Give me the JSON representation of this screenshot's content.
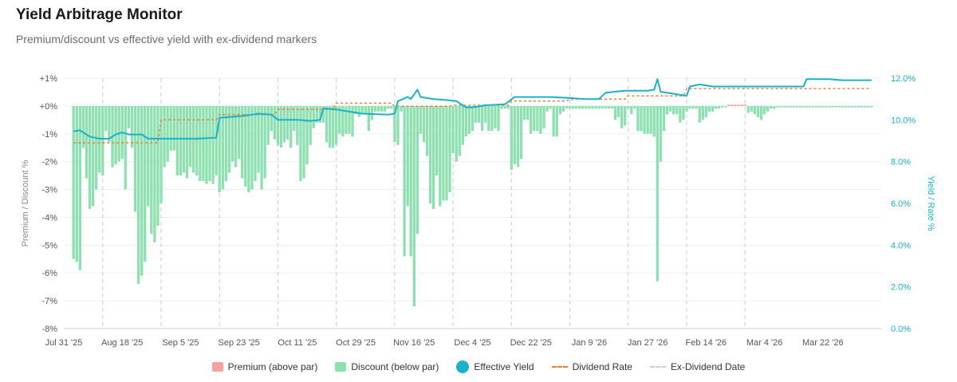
{
  "header": {
    "title": "Yield Arbitrage Monitor",
    "subtitle": "Premium/discount vs effective yield with ex-dividend markers"
  },
  "colors": {
    "premium": "#f4a3a3",
    "discount": "#8de0b0",
    "yield": "#17b3c9",
    "dividend": "#e8803a",
    "exdiv": "#cccccc"
  },
  "legend": {
    "premium": "Premium (above par)",
    "discount": "Discount (below par)",
    "yield": "Effective Yield",
    "dividend": "Dividend Rate",
    "exdiv": "Ex-Dividend Date"
  },
  "chart_data": {
    "type": "bar",
    "title": "Yield Arbitrage Monitor",
    "subtitle": "Premium/discount vs effective yield with ex-dividend markers",
    "ylabel": "Premium / Discount %",
    "y2label": "Yield / Rate %",
    "ylim": [
      -8,
      1
    ],
    "y2lim": [
      0,
      12
    ],
    "yticks": [
      {
        "v": 1,
        "label": "+1%"
      },
      {
        "v": 0,
        "label": "+0%"
      },
      {
        "v": -1,
        "label": "-1%"
      },
      {
        "v": -2,
        "label": "-2%"
      },
      {
        "v": -3,
        "label": "-3%"
      },
      {
        "v": -4,
        "label": "-4%"
      },
      {
        "v": -5,
        "label": "-5%"
      },
      {
        "v": -6,
        "label": "-6%"
      },
      {
        "v": -7,
        "label": "-7%"
      },
      {
        "v": -8,
        "label": "-8%"
      }
    ],
    "y2ticks": [
      {
        "v": 12,
        "label": "12.0%"
      },
      {
        "v": 10,
        "label": "10.0%"
      },
      {
        "v": 8,
        "label": "8.0%"
      },
      {
        "v": 6,
        "label": "6.0%"
      },
      {
        "v": 4,
        "label": "4.0%"
      },
      {
        "v": 2,
        "label": "2.0%"
      },
      {
        "v": 0,
        "label": "0.0%"
      }
    ],
    "xticks": [
      {
        "day": 0,
        "label": "Jul 31 '25"
      },
      {
        "day": 18,
        "label": "Aug 18 '25"
      },
      {
        "day": 36,
        "label": "Sep 5 '25"
      },
      {
        "day": 54,
        "label": "Sep 23 '25"
      },
      {
        "day": 72,
        "label": "Oct 11 '25"
      },
      {
        "day": 90,
        "label": "Oct 29 '25"
      },
      {
        "day": 108,
        "label": "Nov 16 '25"
      },
      {
        "day": 126,
        "label": "Dec 4 '25"
      },
      {
        "day": 144,
        "label": "Dec 22 '25"
      },
      {
        "day": 162,
        "label": "Jan 9 '26"
      },
      {
        "day": 180,
        "label": "Jan 27 '26"
      },
      {
        "day": 198,
        "label": "Feb 14 '26"
      },
      {
        "day": 216,
        "label": "Mar 4 '26"
      },
      {
        "day": 234,
        "label": "Mar 22 '26"
      }
    ],
    "x_range_days": [
      0,
      252
    ],
    "ex_dividend_days": [
      12,
      30,
      48,
      66,
      84,
      102,
      120,
      138,
      156,
      174,
      192,
      210
    ],
    "dividend_rate": [
      {
        "day": 3,
        "v": 8.9
      },
      {
        "day": 29,
        "v": 8.9
      },
      {
        "day": 30,
        "v": 10.0
      },
      {
        "day": 47,
        "v": 10.0
      },
      {
        "day": 48,
        "v": 10.25
      },
      {
        "day": 65,
        "v": 10.25
      },
      {
        "day": 66,
        "v": 10.5
      },
      {
        "day": 83,
        "v": 10.5
      },
      {
        "day": 84,
        "v": 10.8
      },
      {
        "day": 101,
        "v": 10.8
      },
      {
        "day": 102,
        "v": 10.65
      },
      {
        "day": 119,
        "v": 10.65
      },
      {
        "day": 120,
        "v": 10.7
      },
      {
        "day": 137,
        "v": 10.7
      },
      {
        "day": 138,
        "v": 10.9
      },
      {
        "day": 155,
        "v": 10.9
      },
      {
        "day": 156,
        "v": 11.0
      },
      {
        "day": 173,
        "v": 11.0
      },
      {
        "day": 174,
        "v": 11.15
      },
      {
        "day": 191,
        "v": 11.15
      },
      {
        "day": 192,
        "v": 11.5
      },
      {
        "day": 249,
        "v": 11.5
      }
    ],
    "effective_yield": [
      {
        "day": 3,
        "v": 9.45
      },
      {
        "day": 5,
        "v": 9.5
      },
      {
        "day": 8,
        "v": 9.2
      },
      {
        "day": 11,
        "v": 9.1
      },
      {
        "day": 14,
        "v": 9.1
      },
      {
        "day": 16,
        "v": 9.3
      },
      {
        "day": 18,
        "v": 9.4
      },
      {
        "day": 20,
        "v": 9.3
      },
      {
        "day": 24,
        "v": 9.3
      },
      {
        "day": 26,
        "v": 9.1
      },
      {
        "day": 34,
        "v": 9.1
      },
      {
        "day": 41,
        "v": 9.1
      },
      {
        "day": 47,
        "v": 9.15
      },
      {
        "day": 48,
        "v": 10.1
      },
      {
        "day": 56,
        "v": 10.2
      },
      {
        "day": 60,
        "v": 10.3
      },
      {
        "day": 64,
        "v": 10.25
      },
      {
        "day": 66,
        "v": 10.0
      },
      {
        "day": 72,
        "v": 10.0
      },
      {
        "day": 76,
        "v": 9.95
      },
      {
        "day": 79,
        "v": 10.0
      },
      {
        "day": 80,
        "v": 10.55
      },
      {
        "day": 84,
        "v": 10.5
      },
      {
        "day": 88,
        "v": 10.4
      },
      {
        "day": 92,
        "v": 10.3
      },
      {
        "day": 100,
        "v": 10.25
      },
      {
        "day": 102,
        "v": 10.3
      },
      {
        "day": 103,
        "v": 10.9
      },
      {
        "day": 106,
        "v": 11.1
      },
      {
        "day": 107,
        "v": 11.0
      },
      {
        "day": 109,
        "v": 11.45
      },
      {
        "day": 110,
        "v": 11.1
      },
      {
        "day": 114,
        "v": 11.0
      },
      {
        "day": 118,
        "v": 10.95
      },
      {
        "day": 121,
        "v": 10.9
      },
      {
        "day": 124,
        "v": 10.6
      },
      {
        "day": 126,
        "v": 10.6
      },
      {
        "day": 130,
        "v": 10.7
      },
      {
        "day": 136,
        "v": 10.75
      },
      {
        "day": 139,
        "v": 11.1
      },
      {
        "day": 144,
        "v": 11.1
      },
      {
        "day": 150,
        "v": 11.1
      },
      {
        "day": 156,
        "v": 11.05
      },
      {
        "day": 161,
        "v": 11.0
      },
      {
        "day": 165,
        "v": 11.0
      },
      {
        "day": 167,
        "v": 11.3
      },
      {
        "day": 173,
        "v": 11.4
      },
      {
        "day": 180,
        "v": 11.4
      },
      {
        "day": 182,
        "v": 11.45
      },
      {
        "day": 183,
        "v": 11.95
      },
      {
        "day": 184,
        "v": 11.35
      },
      {
        "day": 190,
        "v": 11.2
      },
      {
        "day": 192,
        "v": 11.15
      },
      {
        "day": 193,
        "v": 11.6
      },
      {
        "day": 196,
        "v": 11.7
      },
      {
        "day": 200,
        "v": 11.6
      },
      {
        "day": 210,
        "v": 11.6
      },
      {
        "day": 216,
        "v": 11.6
      },
      {
        "day": 228,
        "v": 11.6
      },
      {
        "day": 229,
        "v": 11.95
      },
      {
        "day": 236,
        "v": 11.95
      },
      {
        "day": 240,
        "v": 11.9
      },
      {
        "day": 249,
        "v": 11.9
      }
    ],
    "premium_discount": [
      [
        3,
        -5.5
      ],
      [
        4,
        -5.6
      ],
      [
        5,
        -5.9
      ],
      [
        6,
        -1.5
      ],
      [
        7,
        -2.6
      ],
      [
        8,
        -3.7
      ],
      [
        9,
        -3.6
      ],
      [
        10,
        -3.0
      ],
      [
        11,
        -2.4
      ],
      [
        12,
        -2.5
      ],
      [
        13,
        -0.9
      ],
      [
        14,
        -1.3
      ],
      [
        15,
        -2.2
      ],
      [
        16,
        -2.1
      ],
      [
        17,
        -2.0
      ],
      [
        18,
        -1.9
      ],
      [
        19,
        -3.0
      ],
      [
        20,
        -0.8
      ],
      [
        21,
        -1.5
      ],
      [
        22,
        -3.8
      ],
      [
        23,
        -6.4
      ],
      [
        24,
        -6.1
      ],
      [
        25,
        -5.6
      ],
      [
        26,
        -3.6
      ],
      [
        27,
        -4.6
      ],
      [
        28,
        -4.9
      ],
      [
        29,
        -4.3
      ],
      [
        30,
        -3.5
      ],
      [
        31,
        -2.2
      ],
      [
        32,
        -2.0
      ],
      [
        33,
        -1.6
      ],
      [
        34,
        -1.6
      ],
      [
        35,
        -2.5
      ],
      [
        36,
        -2.5
      ],
      [
        37,
        -2.4
      ],
      [
        38,
        -2.6
      ],
      [
        39,
        -2.2
      ],
      [
        40,
        -2.4
      ],
      [
        41,
        -2.5
      ],
      [
        42,
        -2.7
      ],
      [
        43,
        -2.7
      ],
      [
        44,
        -2.8
      ],
      [
        45,
        -2.7
      ],
      [
        46,
        -2.8
      ],
      [
        47,
        -2.5
      ],
      [
        48,
        -3.1
      ],
      [
        49,
        -3.0
      ],
      [
        50,
        -2.7
      ],
      [
        51,
        -2.4
      ],
      [
        52,
        -2.0
      ],
      [
        53,
        -2.2
      ],
      [
        54,
        -1.9
      ],
      [
        55,
        -2.6
      ],
      [
        56,
        -2.9
      ],
      [
        57,
        -3.1
      ],
      [
        58,
        -3.0
      ],
      [
        59,
        -2.7
      ],
      [
        60,
        -2.4
      ],
      [
        61,
        -3.0
      ],
      [
        62,
        -2.6
      ],
      [
        63,
        -1.4
      ],
      [
        64,
        -0.9
      ],
      [
        65,
        -1.2
      ],
      [
        66,
        -1.4
      ],
      [
        67,
        -1.5
      ],
      [
        68,
        -1.3
      ],
      [
        69,
        -1.2
      ],
      [
        70,
        -1.5
      ],
      [
        71,
        -0.9
      ],
      [
        72,
        -1.4
      ],
      [
        73,
        -2.7
      ],
      [
        74,
        -2.6
      ],
      [
        75,
        -2.1
      ],
      [
        76,
        -1.4
      ],
      [
        77,
        -0.8
      ],
      [
        78,
        -0.6
      ],
      [
        79,
        -0.6
      ],
      [
        80,
        -0.6
      ],
      [
        81,
        -1.3
      ],
      [
        82,
        -1.5
      ],
      [
        83,
        -1.5
      ],
      [
        84,
        -1.4
      ],
      [
        85,
        -1.0
      ],
      [
        86,
        -1.1
      ],
      [
        87,
        -1.0
      ],
      [
        88,
        -1.0
      ],
      [
        89,
        -1.1
      ],
      [
        90,
        -0.3
      ],
      [
        91,
        -0.4
      ],
      [
        92,
        -0.3
      ],
      [
        93,
        -0.3
      ],
      [
        94,
        -0.9
      ],
      [
        95,
        -0.5
      ],
      [
        96,
        -0.2
      ],
      [
        97,
        -0.2
      ],
      [
        98,
        -0.2
      ],
      [
        99,
        -0.2
      ],
      [
        100,
        -0.1
      ],
      [
        101,
        -0.1
      ],
      [
        102,
        -1.3
      ],
      [
        103,
        -1.4
      ],
      [
        104,
        -0.2
      ],
      [
        105,
        -5.4
      ],
      [
        106,
        -3.6
      ],
      [
        107,
        -5.4
      ],
      [
        108,
        -7.2
      ],
      [
        109,
        -4.6
      ],
      [
        110,
        -1.0
      ],
      [
        111,
        -1.3
      ],
      [
        112,
        -1.8
      ],
      [
        113,
        -3.5
      ],
      [
        114,
        -3.7
      ],
      [
        115,
        -2.5
      ],
      [
        116,
        -3.6
      ],
      [
        117,
        -3.4
      ],
      [
        118,
        -3.4
      ],
      [
        119,
        -3.1
      ],
      [
        120,
        -1.7
      ],
      [
        121,
        -2.0
      ],
      [
        122,
        -1.8
      ],
      [
        123,
        -1.4
      ],
      [
        124,
        -1.1
      ],
      [
        125,
        -1.0
      ],
      [
        126,
        -0.9
      ],
      [
        127,
        -0.6
      ],
      [
        128,
        -0.6
      ],
      [
        129,
        -0.9
      ],
      [
        130,
        -0.6
      ],
      [
        131,
        -0.9
      ],
      [
        132,
        -0.9
      ],
      [
        133,
        -0.8
      ],
      [
        134,
        -0.9
      ],
      [
        135,
        -0.1
      ],
      [
        136,
        -0.1
      ],
      [
        137,
        -0.1
      ],
      [
        138,
        -2.3
      ],
      [
        139,
        -2.1
      ],
      [
        140,
        -2.2
      ],
      [
        141,
        -1.9
      ],
      [
        142,
        -0.5
      ],
      [
        143,
        -0.5
      ],
      [
        144,
        -1.0
      ],
      [
        145,
        -0.9
      ],
      [
        146,
        -0.9
      ],
      [
        147,
        -1.0
      ],
      [
        148,
        -0.8
      ],
      [
        149,
        -0.2
      ],
      [
        150,
        -0.1
      ],
      [
        151,
        -1.1
      ],
      [
        152,
        -1.1
      ],
      [
        153,
        -0.3
      ],
      [
        154,
        -0.2
      ],
      [
        155,
        -0.1
      ],
      [
        156,
        -0.1
      ],
      [
        157,
        -0.1
      ],
      [
        158,
        -0.1
      ],
      [
        159,
        -0.1
      ],
      [
        160,
        -0.1
      ],
      [
        161,
        -0.1
      ],
      [
        162,
        -0.1
      ],
      [
        163,
        -0.1
      ],
      [
        164,
        -0.1
      ],
      [
        165,
        -0.1
      ],
      [
        166,
        -0.1
      ],
      [
        167,
        -0.1
      ],
      [
        168,
        -0.1
      ],
      [
        169,
        -0.1
      ],
      [
        170,
        -0.5
      ],
      [
        171,
        -0.4
      ],
      [
        172,
        -0.8
      ],
      [
        173,
        -0.7
      ],
      [
        174,
        -0.1
      ],
      [
        175,
        -0.3
      ],
      [
        176,
        -0.1
      ],
      [
        177,
        -0.9
      ],
      [
        178,
        -0.9
      ],
      [
        179,
        -1.0
      ],
      [
        180,
        -1.0
      ],
      [
        181,
        -1.0
      ],
      [
        182,
        -1.1
      ],
      [
        183,
        -6.3
      ],
      [
        184,
        -2.0
      ],
      [
        185,
        -0.9
      ],
      [
        186,
        -0.3
      ],
      [
        187,
        -0.2
      ],
      [
        188,
        -0.3
      ],
      [
        189,
        -0.3
      ],
      [
        190,
        -0.6
      ],
      [
        191,
        -0.5
      ],
      [
        192,
        -0.2
      ],
      [
        193,
        -0.1
      ],
      [
        194,
        -0.1
      ],
      [
        195,
        -0.1
      ],
      [
        196,
        -0.6
      ],
      [
        197,
        -0.5
      ],
      [
        198,
        -0.4
      ],
      [
        199,
        -0.2
      ],
      [
        200,
        -0.2
      ],
      [
        201,
        -0.1
      ],
      [
        202,
        -0.1
      ],
      [
        203,
        -0.05
      ],
      [
        204,
        -0.05
      ],
      [
        205,
        0.05
      ],
      [
        206,
        0.05
      ],
      [
        207,
        0.05
      ],
      [
        208,
        0.05
      ],
      [
        209,
        0.05
      ],
      [
        210,
        0.05
      ],
      [
        211,
        -0.25
      ],
      [
        212,
        -0.2
      ],
      [
        213,
        -0.3
      ],
      [
        214,
        -0.4
      ],
      [
        215,
        -0.5
      ],
      [
        216,
        -0.3
      ],
      [
        217,
        -0.2
      ],
      [
        218,
        -0.1
      ],
      [
        219,
        -0.1
      ],
      [
        220,
        -0.05
      ],
      [
        221,
        -0.05
      ],
      [
        222,
        -0.05
      ],
      [
        223,
        -0.05
      ],
      [
        224,
        -0.05
      ],
      [
        225,
        -0.05
      ],
      [
        226,
        -0.05
      ],
      [
        227,
        -0.05
      ],
      [
        228,
        -0.05
      ],
      [
        229,
        -0.05
      ],
      [
        230,
        -0.05
      ],
      [
        231,
        -0.05
      ],
      [
        232,
        -0.05
      ],
      [
        233,
        -0.05
      ],
      [
        234,
        -0.05
      ],
      [
        235,
        -0.05
      ],
      [
        236,
        -0.05
      ],
      [
        237,
        -0.05
      ],
      [
        238,
        -0.05
      ],
      [
        239,
        -0.05
      ],
      [
        240,
        -0.05
      ],
      [
        241,
        -0.05
      ],
      [
        242,
        -0.05
      ],
      [
        243,
        -0.05
      ],
      [
        244,
        -0.05
      ],
      [
        245,
        -0.05
      ],
      [
        246,
        -0.05
      ],
      [
        247,
        -0.05
      ],
      [
        248,
        -0.05
      ],
      [
        249,
        -0.05
      ]
    ]
  }
}
